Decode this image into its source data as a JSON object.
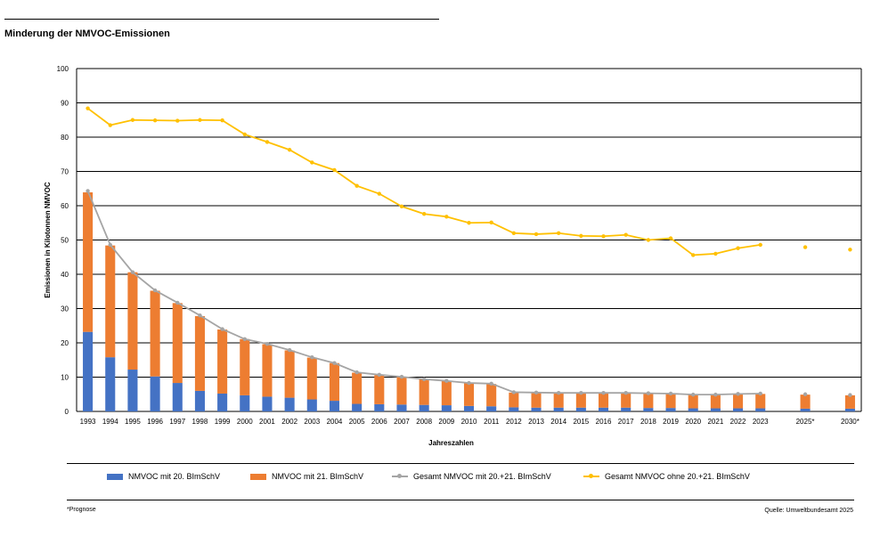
{
  "page": {
    "title": "Minderung der NMVOC-Emissionen",
    "footnote": "*Prognose",
    "source": "Quelle: Umweltbundesamt 2025"
  },
  "chart_data": {
    "type": "bar",
    "title": "Minderung der NMVOC-Emissionen",
    "xlabel": "Jahreszahlen",
    "ylabel": "Emissionen in Kilotonnen NMVOC",
    "ylim": [
      0,
      100
    ],
    "yticks": [
      0,
      10,
      20,
      30,
      40,
      50,
      60,
      70,
      80,
      90,
      100
    ],
    "grid": true,
    "legend_position": "bottom",
    "categories": [
      "1993",
      "1994",
      "1995",
      "1996",
      "1997",
      "1998",
      "1999",
      "2000",
      "2001",
      "2002",
      "2003",
      "2004",
      "2005",
      "2006",
      "2007",
      "2008",
      "2009",
      "2010",
      "2011",
      "2012",
      "2013",
      "2014",
      "2015",
      "2016",
      "2017",
      "2018",
      "2019",
      "2020",
      "2021",
      "2022",
      "2023",
      "",
      "2025*",
      "",
      "2030*"
    ],
    "stacked": true,
    "series": [
      {
        "name": "NMVOC mit 20. BImSchV",
        "kind": "bar",
        "color": "#4472C4",
        "values": [
          23.2,
          15.8,
          12.2,
          10.2,
          8.3,
          6.0,
          5.2,
          4.7,
          4.3,
          4.0,
          3.5,
          3.1,
          2.2,
          2.1,
          2.0,
          1.9,
          1.8,
          1.6,
          1.5,
          1.2,
          1.1,
          1.1,
          1.1,
          1.1,
          1.1,
          1.0,
          1.0,
          0.9,
          0.9,
          0.9,
          0.9,
          null,
          0.8,
          null,
          0.8
        ]
      },
      {
        "name": "NMVOC mit 21. BImSchV",
        "kind": "bar",
        "color": "#ED7D31",
        "values": [
          40.7,
          32.6,
          28.4,
          25.0,
          23.3,
          21.8,
          18.7,
          16.4,
          15.3,
          13.8,
          12.2,
          11.0,
          9.1,
          8.5,
          8.0,
          7.5,
          7.1,
          6.6,
          6.5,
          4.3,
          4.3,
          4.3,
          4.3,
          4.3,
          4.3,
          4.2,
          4.1,
          3.9,
          3.9,
          4.1,
          4.2,
          null,
          4.1,
          null,
          3.9
        ]
      },
      {
        "name": "Gesamt NMVOC mit 20.+21. BImSchV",
        "kind": "line",
        "color": "#A5A5A5",
        "values": [
          64.3,
          48.6,
          40.6,
          35.3,
          31.7,
          28.0,
          24.0,
          21.1,
          19.7,
          17.9,
          15.8,
          14.1,
          11.4,
          10.7,
          10.1,
          9.4,
          8.9,
          8.3,
          8.1,
          5.6,
          5.5,
          5.4,
          5.4,
          5.4,
          5.4,
          5.3,
          5.2,
          4.9,
          4.9,
          5.1,
          5.2,
          null,
          5.0,
          null,
          4.8
        ]
      },
      {
        "name": "Gesamt NMVOC ohne 20.+21. BImSchV",
        "kind": "line",
        "color": "#FFC000",
        "values": [
          88.4,
          83.5,
          85.0,
          84.9,
          84.8,
          85.0,
          84.9,
          80.8,
          78.6,
          76.3,
          72.6,
          70.4,
          65.8,
          63.5,
          59.8,
          57.6,
          56.8,
          55.0,
          55.1,
          52.0,
          51.7,
          52.0,
          51.2,
          51.1,
          51.5,
          50.0,
          50.5,
          45.6,
          46.0,
          47.6,
          48.6,
          null,
          47.9,
          null,
          47.2
        ]
      }
    ]
  }
}
